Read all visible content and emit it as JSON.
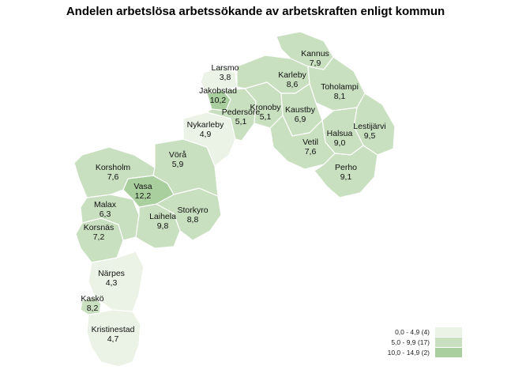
{
  "title": "Andelen arbetslösa arbetssökande av arbetskraften enligt kommun",
  "colors": {
    "class_0": "#ebf3e6",
    "class_1": "#c9e0c0",
    "class_2": "#a8cf9d",
    "border": "#ffffff"
  },
  "legend": [
    {
      "label": "0,0 - 4,9 (4)",
      "color_class": "class_0"
    },
    {
      "label": "5,0 - 9,9 (17)",
      "color_class": "class_1"
    },
    {
      "label": "10,0 - 14,9 (2)",
      "color_class": "class_2"
    }
  ],
  "municipalities": [
    {
      "name": "Kannus",
      "value": "7,9",
      "class": "class_1"
    },
    {
      "name": "Larsmo",
      "value": "3,8",
      "class": "class_0"
    },
    {
      "name": "Karleby",
      "value": "8,6",
      "class": "class_1"
    },
    {
      "name": "Jakobstad",
      "value": "10,2",
      "class": "class_2"
    },
    {
      "name": "Toholampi",
      "value": "8,1",
      "class": "class_1"
    },
    {
      "name": "Kronoby",
      "value": "5,1",
      "class": "class_1"
    },
    {
      "name": "Pedersöre",
      "value": "5,1",
      "class": "class_1"
    },
    {
      "name": "Kaustby",
      "value": "6,9",
      "class": "class_1"
    },
    {
      "name": "Nykarleby",
      "value": "4,9",
      "class": "class_0"
    },
    {
      "name": "Lestijärvi",
      "value": "9,5",
      "class": "class_1"
    },
    {
      "name": "Halsua",
      "value": "9,0",
      "class": "class_1"
    },
    {
      "name": "Vetil",
      "value": "7,6",
      "class": "class_1"
    },
    {
      "name": "Vörå",
      "value": "5,9",
      "class": "class_1"
    },
    {
      "name": "Korsholm",
      "value": "7,6",
      "class": "class_1"
    },
    {
      "name": "Perho",
      "value": "9,1",
      "class": "class_1"
    },
    {
      "name": "Vasa",
      "value": "12,2",
      "class": "class_2"
    },
    {
      "name": "Malax",
      "value": "6,3",
      "class": "class_1"
    },
    {
      "name": "Storkyro",
      "value": "8,8",
      "class": "class_1"
    },
    {
      "name": "Laihela",
      "value": "9,8",
      "class": "class_1"
    },
    {
      "name": "Korsnäs",
      "value": "7,2",
      "class": "class_1"
    },
    {
      "name": "Närpes",
      "value": "4,3",
      "class": "class_0"
    },
    {
      "name": "Kaskö",
      "value": "8,2",
      "class": "class_1"
    },
    {
      "name": "Kristinestad",
      "value": "4,7",
      "class": "class_0"
    }
  ]
}
